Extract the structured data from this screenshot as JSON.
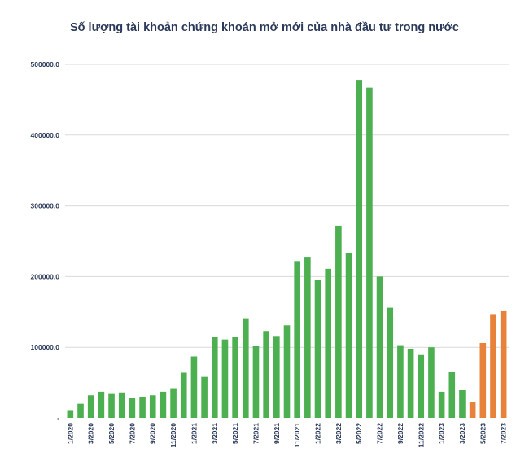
{
  "chart_data": {
    "type": "bar",
    "title": "Số lượng tài khoản chứng khoán mở mới của nhà đầu tư trong nước",
    "xlabel": "",
    "ylabel": "",
    "ylim": [
      0,
      500000
    ],
    "y_ticks": [
      "-",
      "100000.0",
      "200000.0",
      "300000.0",
      "400000.0",
      "500000.0"
    ],
    "grid": true,
    "categories": [
      "1/2020",
      "2/2020",
      "3/2020",
      "4/2020",
      "5/2020",
      "6/2020",
      "7/2020",
      "8/2020",
      "9/2020",
      "10/2020",
      "11/2020",
      "12/2020",
      "1/2021",
      "2/2021",
      "3/2021",
      "4/2021",
      "5/2021",
      "6/2021",
      "7/2021",
      "8/2021",
      "9/2021",
      "10/2021",
      "11/2021",
      "12/2021",
      "1/2022",
      "2/2022",
      "3/2022",
      "4/2022",
      "5/2022",
      "6/2022",
      "7/2022",
      "8/2022",
      "9/2022",
      "10/2022",
      "11/2022",
      "12/2022",
      "1/2023",
      "2/2023",
      "3/2023",
      "4/2023",
      "5/2023",
      "6/2023",
      "7/2023"
    ],
    "x_tick_labels": [
      "1/2020",
      "3/2020",
      "5/2020",
      "7/2020",
      "9/2020",
      "11/2020",
      "1/2021",
      "3/2021",
      "5/2021",
      "7/2021",
      "9/2021",
      "11/2021",
      "1/2022",
      "3/2022",
      "5/2022",
      "7/2022",
      "9/2022",
      "11/2022",
      "1/2023",
      "3/2023",
      "5/2023",
      "7/2023"
    ],
    "values": [
      11000,
      20000,
      32000,
      37000,
      35000,
      36000,
      28000,
      30000,
      32000,
      37000,
      42000,
      64000,
      87000,
      58000,
      115000,
      111000,
      115000,
      141000,
      102000,
      123000,
      116000,
      131000,
      222000,
      228000,
      195000,
      211000,
      272000,
      233000,
      478000,
      467000,
      200000,
      156000,
      103000,
      98000,
      89000,
      100000,
      37000,
      65000,
      40000,
      23000,
      106000,
      147000,
      151000
    ],
    "colors": {
      "historical": "#4caf50",
      "recent": "#e8823a",
      "grid": "#d9d9d9",
      "text": "#2b3a5a"
    },
    "highlight_from_index": 39
  }
}
